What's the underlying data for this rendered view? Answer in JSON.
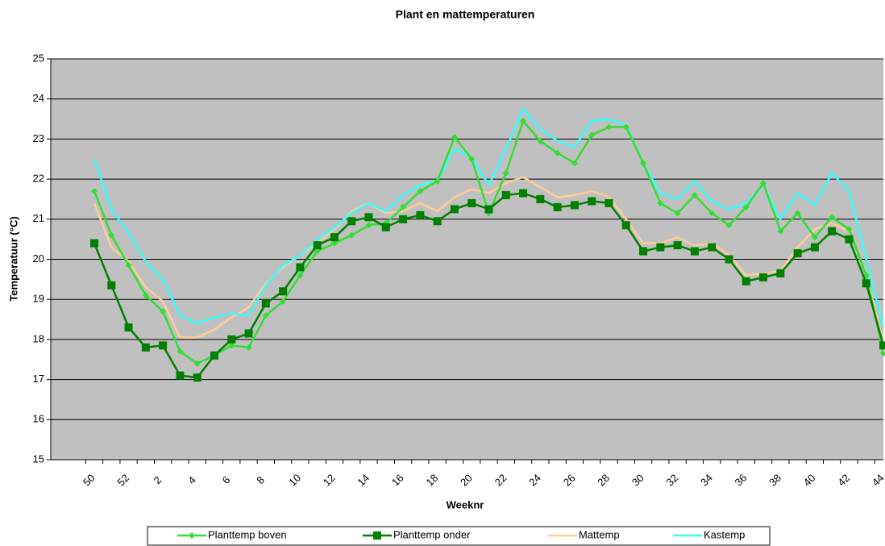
{
  "chart_data": {
    "type": "line",
    "title": "Plant en mattemperaturen",
    "x_label": "Weeknr",
    "y_label": "Temperatuur (°C)",
    "categories": [
      "50",
      null,
      "52",
      null,
      "2",
      null,
      "4",
      null,
      "6",
      null,
      "8",
      null,
      "10",
      null,
      "12",
      null,
      "14",
      null,
      "16",
      null,
      "18",
      null,
      "20",
      null,
      "22",
      null,
      "24",
      null,
      "26",
      null,
      "28",
      null,
      "30",
      null,
      "32",
      null,
      "34",
      null,
      "36",
      null,
      "38",
      null,
      "40",
      null,
      "42",
      null,
      "44"
    ],
    "ylim": [
      15,
      25
    ],
    "yticks": [
      15,
      16,
      17,
      18,
      19,
      20,
      21,
      22,
      23,
      24,
      25
    ],
    "grid": true,
    "series": [
      {
        "name": "Planttemp boven",
        "color": "#33dd33",
        "marker": "diamond",
        "values": [
          21.7,
          20.6,
          19.85,
          19.1,
          18.7,
          17.7,
          17.4,
          17.6,
          17.85,
          17.8,
          18.6,
          18.95,
          19.6,
          20.2,
          20.4,
          20.6,
          20.85,
          20.9,
          21.3,
          21.7,
          21.95,
          23.05,
          22.5,
          21.15,
          22.15,
          23.45,
          22.95,
          22.65,
          22.4,
          23.1,
          23.3,
          23.3,
          22.4,
          21.4,
          21.15,
          21.6,
          21.15,
          20.85,
          21.3,
          21.9,
          20.7,
          21.15,
          20.55,
          21.05,
          20.75,
          19.6,
          17.65
        ]
      },
      {
        "name": "Planttemp onder",
        "color": "#008000",
        "marker": "square",
        "values": [
          20.4,
          19.35,
          18.3,
          17.8,
          17.85,
          17.1,
          17.05,
          17.6,
          18.0,
          18.15,
          18.9,
          19.2,
          19.8,
          20.35,
          20.55,
          20.95,
          21.05,
          20.8,
          21.0,
          21.1,
          20.95,
          21.25,
          21.4,
          21.25,
          21.6,
          21.65,
          21.5,
          21.3,
          21.35,
          21.45,
          21.4,
          20.85,
          20.2,
          20.3,
          20.35,
          20.2,
          20.3,
          20.0,
          19.45,
          19.55,
          19.65,
          20.15,
          20.3,
          20.7,
          20.5,
          19.4,
          17.85
        ]
      },
      {
        "name": "Mattemp",
        "color": "#ffcc99",
        "marker": "none",
        "values": [
          21.4,
          20.3,
          19.95,
          19.3,
          18.95,
          18.05,
          18.05,
          18.25,
          18.55,
          18.8,
          19.4,
          19.8,
          20.1,
          20.4,
          20.75,
          21.2,
          21.4,
          21.15,
          21.2,
          21.4,
          21.2,
          21.55,
          21.75,
          21.65,
          21.9,
          22.05,
          21.8,
          21.55,
          21.6,
          21.7,
          21.55,
          21.0,
          20.4,
          20.4,
          20.55,
          20.35,
          20.4,
          20.1,
          19.6,
          19.65,
          19.7,
          20.3,
          20.75,
          20.9,
          20.7,
          19.65,
          17.9
        ]
      },
      {
        "name": "Kastemp",
        "color": "#33ffff",
        "marker": "none",
        "values": [
          22.5,
          21.25,
          20.65,
          19.95,
          19.5,
          18.6,
          18.4,
          18.55,
          18.65,
          18.6,
          19.35,
          19.85,
          20.1,
          20.5,
          20.8,
          21.15,
          21.4,
          21.2,
          21.6,
          21.85,
          21.95,
          22.75,
          22.55,
          21.85,
          22.75,
          23.75,
          23.25,
          22.95,
          22.8,
          23.45,
          23.5,
          23.35,
          22.4,
          21.65,
          21.5,
          21.95,
          21.45,
          21.25,
          21.4,
          21.85,
          21.0,
          21.65,
          21.35,
          22.15,
          21.7,
          20.0,
          18.3
        ]
      }
    ]
  }
}
